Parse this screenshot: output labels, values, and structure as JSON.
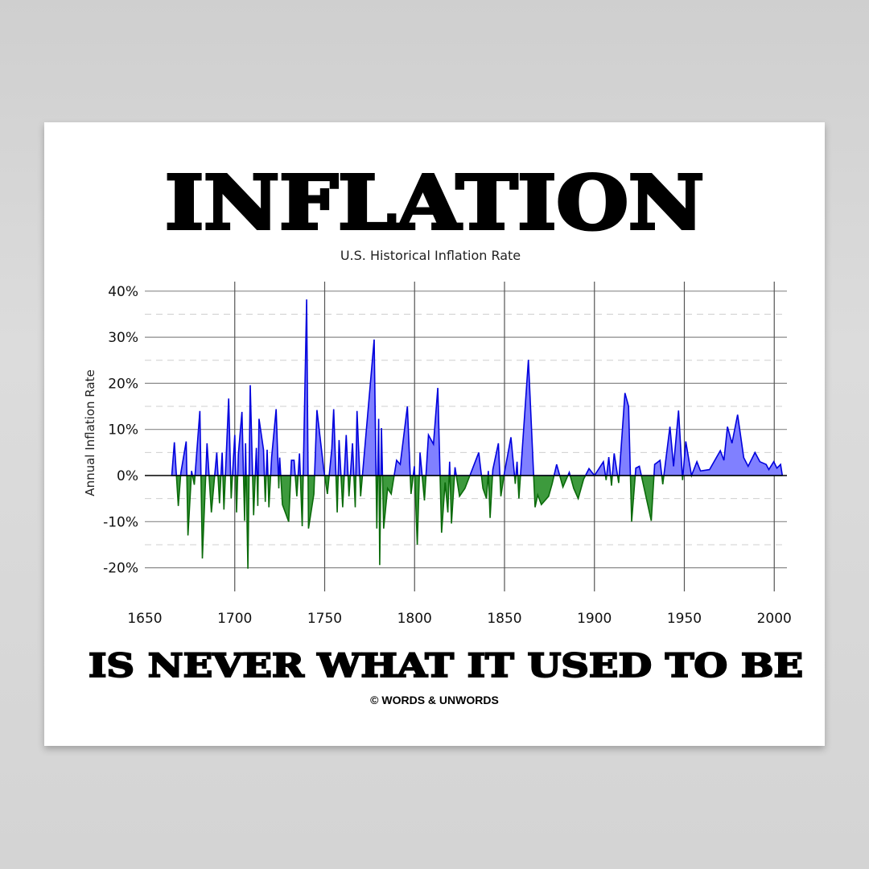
{
  "poster": {
    "headline": "INFLATION",
    "tagline": "IS NEVER WHAT IT USED TO BE",
    "copyright": "© WORDS & UNWORDS"
  },
  "colors": {
    "positive_fill": "#8080ff",
    "positive_line": "#0000dd",
    "negative_fill": "#3d9a3d",
    "negative_line": "#0a6a0a"
  },
  "chart_data": {
    "type": "area",
    "title": "U.S. Historical Inflation Rate",
    "xlabel": "",
    "ylabel": "Annual Inflation Rate",
    "xlim": [
      1650,
      2007
    ],
    "ylim": [
      -24,
      42
    ],
    "x_ticks": [
      1650,
      1700,
      1750,
      1800,
      1850,
      1900,
      1950,
      2000
    ],
    "x_tick_labels": [
      "1650",
      "1700",
      "1750",
      "1800",
      "1850",
      "1900",
      "1950",
      "2000"
    ],
    "y_ticks": [
      40,
      30,
      20,
      10,
      0,
      -10,
      -20
    ],
    "y_tick_labels": [
      "40%",
      "30%",
      "20%",
      "10%",
      "0%",
      "-10%",
      "-20%"
    ],
    "grid": true,
    "series": [
      {
        "points": [
          [
            1665,
            0
          ],
          [
            1666.4,
            7.2
          ],
          [
            1668.6,
            -6.6
          ],
          [
            1670,
            0.5
          ],
          [
            1673,
            7.4
          ],
          [
            1674,
            -13
          ],
          [
            1676,
            1
          ],
          [
            1677.5,
            -2
          ],
          [
            1680.6,
            14
          ],
          [
            1682,
            -18
          ],
          [
            1684.6,
            7
          ],
          [
            1687,
            -8
          ],
          [
            1690,
            5
          ],
          [
            1691.5,
            -6
          ],
          [
            1693,
            5
          ],
          [
            1694,
            -7.4
          ],
          [
            1696.6,
            16.7
          ],
          [
            1698,
            -5
          ],
          [
            1700,
            8.8
          ],
          [
            1701,
            -8
          ],
          [
            1702,
            4.5
          ],
          [
            1704,
            13.8
          ],
          [
            1705.5,
            -9.8
          ],
          [
            1706,
            7
          ],
          [
            1707.3,
            -20.2
          ],
          [
            1708.6,
            19.6
          ],
          [
            1710.5,
            -8.6
          ],
          [
            1712,
            6
          ],
          [
            1712.8,
            -6.6
          ],
          [
            1713.5,
            12.3
          ],
          [
            1716,
            5.6
          ],
          [
            1717,
            -5.7
          ],
          [
            1718,
            5.6
          ],
          [
            1719,
            -6.9
          ],
          [
            1720.5,
            4
          ],
          [
            1723,
            14.4
          ],
          [
            1724.5,
            -2.8
          ],
          [
            1725,
            3.9
          ],
          [
            1726.5,
            -6.3
          ],
          [
            1730,
            -10
          ],
          [
            1731.5,
            3.3
          ],
          [
            1733,
            3.3
          ],
          [
            1734.5,
            -4.5
          ],
          [
            1736,
            4.8
          ],
          [
            1737.5,
            -11
          ],
          [
            1740,
            38.2
          ],
          [
            1741,
            -11.5
          ],
          [
            1744,
            -4
          ],
          [
            1745.7,
            14.2
          ],
          [
            1749.5,
            1.3
          ],
          [
            1751.5,
            -4
          ],
          [
            1754,
            5.9
          ],
          [
            1755,
            14.4
          ],
          [
            1757,
            -8
          ],
          [
            1758,
            7.7
          ],
          [
            1760,
            -6.9
          ],
          [
            1762,
            8.8
          ],
          [
            1763.5,
            -4.5
          ],
          [
            1765.5,
            7
          ],
          [
            1767,
            -6.9
          ],
          [
            1768,
            14
          ],
          [
            1770,
            -4.5
          ],
          [
            1777.5,
            29.5
          ],
          [
            1779,
            -11.5
          ],
          [
            1780,
            12.3
          ],
          [
            1780.6,
            -19.4
          ],
          [
            1781.6,
            10.3
          ],
          [
            1782.8,
            -11.5
          ],
          [
            1785,
            -2.8
          ],
          [
            1787,
            -4
          ],
          [
            1790,
            3.3
          ],
          [
            1792,
            2.4
          ],
          [
            1796,
            15
          ],
          [
            1798,
            -4
          ],
          [
            1799.9,
            2
          ],
          [
            1801.5,
            -15
          ],
          [
            1803,
            5
          ],
          [
            1805.5,
            -5.4
          ],
          [
            1807.7,
            8.8
          ],
          [
            1810.5,
            6.8
          ],
          [
            1812.9,
            19
          ],
          [
            1815,
            -12.4
          ],
          [
            1817,
            -1.5
          ],
          [
            1818.5,
            -8
          ],
          [
            1819.5,
            3
          ],
          [
            1820.5,
            -10.4
          ],
          [
            1822.5,
            1.8
          ],
          [
            1825,
            -4.5
          ],
          [
            1828,
            -2.8
          ],
          [
            1835.7,
            5
          ],
          [
            1838,
            -2.8
          ],
          [
            1840,
            -5
          ],
          [
            1841,
            1
          ],
          [
            1842,
            -9.2
          ],
          [
            1843.5,
            1.3
          ],
          [
            1846.6,
            7
          ],
          [
            1848,
            -4.5
          ],
          [
            1850,
            0.7
          ],
          [
            1853.6,
            8.3
          ],
          [
            1856,
            -1.8
          ],
          [
            1857,
            3
          ],
          [
            1858,
            -5
          ],
          [
            1863.3,
            25.1
          ],
          [
            1867,
            -6.9
          ],
          [
            1868.5,
            -4.2
          ],
          [
            1870.5,
            -6.3
          ],
          [
            1874.5,
            -4.5
          ],
          [
            1876.5,
            -1.8
          ],
          [
            1879,
            2.4
          ],
          [
            1882.5,
            -2.5
          ],
          [
            1886,
            0.7
          ],
          [
            1888.5,
            -2.8
          ],
          [
            1891,
            -5
          ],
          [
            1894,
            -0.8
          ],
          [
            1897,
            1.5
          ],
          [
            1900,
            0
          ],
          [
            1905,
            3
          ],
          [
            1906.5,
            -1
          ],
          [
            1908,
            4
          ],
          [
            1909.5,
            -2.2
          ],
          [
            1911,
            4.8
          ],
          [
            1913.5,
            -1.6
          ],
          [
            1917,
            17.9
          ],
          [
            1919,
            15
          ],
          [
            1920.7,
            -10
          ],
          [
            1923,
            1.6
          ],
          [
            1925,
            2
          ],
          [
            1927,
            -1.6
          ],
          [
            1931.6,
            -9.8
          ],
          [
            1933.5,
            2.4
          ],
          [
            1936.5,
            3.3
          ],
          [
            1938,
            -1.9
          ],
          [
            1942,
            10.6
          ],
          [
            1944,
            2
          ],
          [
            1946.8,
            14.1
          ],
          [
            1949,
            -1
          ],
          [
            1950.8,
            7.4
          ],
          [
            1954,
            0
          ],
          [
            1957,
            3
          ],
          [
            1959,
            1
          ],
          [
            1964,
            1.3
          ],
          [
            1970,
            5.4
          ],
          [
            1972,
            3.3
          ],
          [
            1974,
            10.6
          ],
          [
            1976.5,
            7
          ],
          [
            1979.6,
            13.2
          ],
          [
            1983,
            3.9
          ],
          [
            1985.5,
            2
          ],
          [
            1989.3,
            5
          ],
          [
            1992,
            3
          ],
          [
            1995.5,
            2.4
          ],
          [
            1997,
            1.3
          ],
          [
            1999.7,
            3
          ],
          [
            2001.5,
            1.6
          ],
          [
            2003.5,
            2.4
          ],
          [
            2004.5,
            0
          ]
        ]
      }
    ]
  }
}
